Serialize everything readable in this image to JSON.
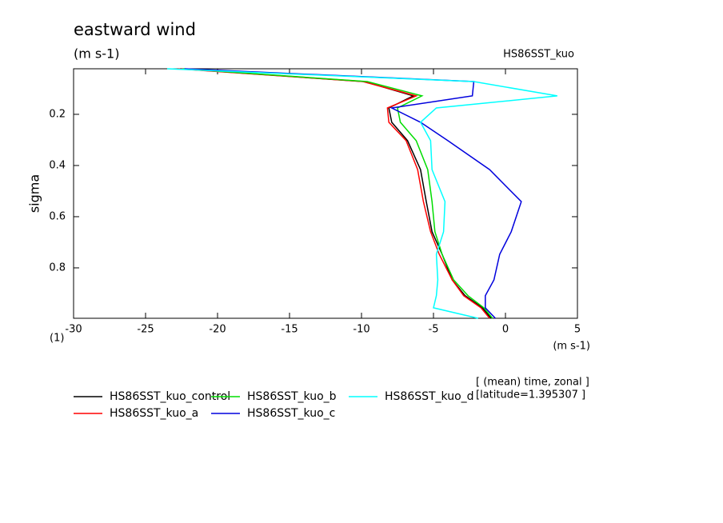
{
  "chart_data": {
    "type": "line",
    "title": "eastward wind",
    "subtitle": "(m s-1)",
    "experiment": "HS86SST_kuo",
    "y_label": "sigma",
    "x_label": "(m s-1)",
    "y_unit": "(1)",
    "annotations": [
      "[ (mean) time, zonal ]",
      "[latitude=1.395307 ]"
    ],
    "xlim": [
      -30,
      5
    ],
    "xticks": [
      -30,
      -25,
      -20,
      -15,
      -10,
      -5,
      0,
      5
    ],
    "ylim": [
      0.022,
      0.997
    ],
    "yticks": [
      0.2,
      0.4,
      0.6,
      0.8
    ],
    "y_inverted": true,
    "y": [
      0.022,
      0.072,
      0.128,
      0.175,
      0.231,
      0.303,
      0.416,
      0.541,
      0.659,
      0.747,
      0.847,
      0.909,
      0.956,
      0.997
    ],
    "series": [
      {
        "name": "HS86SST_kuo_control",
        "color": "#000000",
        "values": [
          -22.6,
          -9.8,
          -6.4,
          -8.1,
          -7.9,
          -6.8,
          -5.9,
          -5.5,
          -5.1,
          -4.4,
          -3.7,
          -2.8,
          -1.6,
          -1.0
        ]
      },
      {
        "name": "HS86SST_kuo_a",
        "color": "#ff0000",
        "values": [
          -22.8,
          -9.9,
          -6.2,
          -8.2,
          -8.1,
          -6.9,
          -6.1,
          -5.7,
          -5.2,
          -4.6,
          -3.7,
          -2.9,
          -1.7,
          -1.1
        ]
      },
      {
        "name": "HS86SST_kuo_b",
        "color": "#00dd00",
        "values": [
          -22.4,
          -9.6,
          -5.8,
          -7.5,
          -7.3,
          -6.2,
          -5.4,
          -5.1,
          -4.9,
          -4.4,
          -3.6,
          -2.6,
          -1.5,
          -0.9
        ]
      },
      {
        "name": "HS86SST_kuo_c",
        "color": "#0000dd",
        "values": [
          -22.3,
          -2.2,
          -2.3,
          -7.9,
          -5.9,
          -4.0,
          -1.1,
          1.1,
          0.4,
          -0.4,
          -0.8,
          -1.4,
          -1.4,
          -0.7
        ]
      },
      {
        "name": "HS86SST_kuo_d",
        "color": "#00ffff",
        "values": [
          -23.5,
          -2.2,
          3.6,
          -4.8,
          -5.9,
          -5.2,
          -5.1,
          -4.2,
          -4.3,
          -4.8,
          -4.7,
          -4.8,
          -5.0,
          -1.9
        ]
      }
    ]
  }
}
